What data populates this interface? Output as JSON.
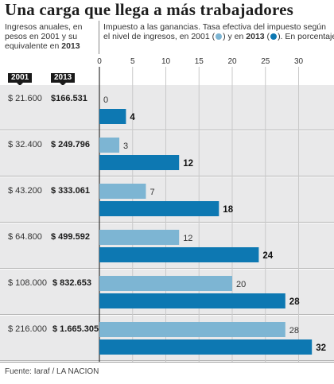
{
  "title": "Una carga que llega a más trabajadores",
  "left_header": {
    "line1": "Ingresos anuales, en",
    "line2": "pesos en 2001 y su",
    "line3_prefix": "equivalente en ",
    "line3_bold": "2013"
  },
  "right_header": {
    "line1": "Impuesto a las ganancias. Tasa efectiva del impuesto según",
    "line2_prefix": "el nivel de ingresos, en 2001 (",
    "line2_mid": ") y en ",
    "line2_bold": "2013",
    "line2_mid2": " (",
    "line2_suffix": "). En porcentaje"
  },
  "year_badges": {
    "y2001": "2001",
    "y2013": "2013"
  },
  "colors": {
    "c2001": "#7db5d3",
    "c2013": "#0d78b2",
    "panel": "#e9e9ea"
  },
  "source": "Fuente: Iaraf / LA NACION",
  "chart_data": {
    "type": "bar",
    "orientation": "horizontal",
    "categories_2001": [
      "$ 21.600",
      "$ 32.400",
      "$ 43.200",
      "$ 64.800",
      "$ 108.000",
      "$ 216.000"
    ],
    "categories_2013": [
      "$166.531",
      "$ 249.796",
      "$ 333.061",
      "$ 499.592",
      "$ 832.653",
      "$ 1.665.305"
    ],
    "series": [
      {
        "name": "2001",
        "values": [
          0,
          3,
          7,
          12,
          20,
          28
        ]
      },
      {
        "name": "2013",
        "values": [
          4,
          12,
          18,
          24,
          28,
          32
        ]
      }
    ],
    "xticks": [
      "0",
      "5",
      "10",
      "15",
      "20",
      "25",
      "30"
    ],
    "xlim": [
      0,
      32
    ],
    "grid": true
  }
}
